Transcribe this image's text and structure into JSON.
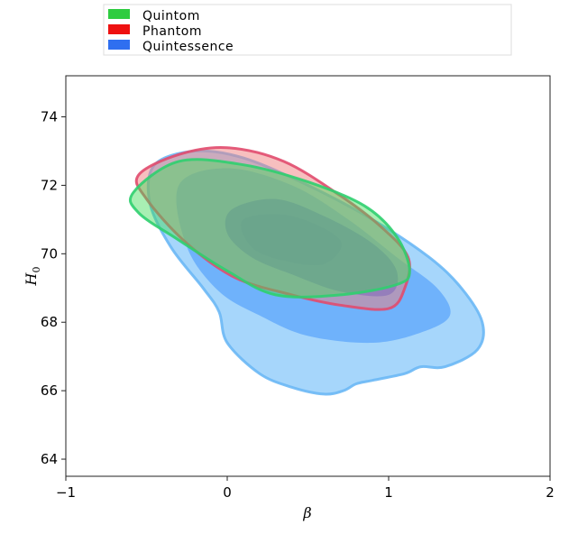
{
  "chart_data": {
    "type": "contour",
    "xlabel": "β",
    "ylabel": "H",
    "ylabel_sub": "0",
    "xlim": [
      -1,
      2
    ],
    "ylim": [
      63.5,
      75.2
    ],
    "xticks": [
      -1,
      0,
      1,
      2
    ],
    "xtick_labels": [
      "−1",
      "0",
      "1",
      "2"
    ],
    "yticks": [
      64,
      66,
      68,
      70,
      72,
      74
    ],
    "ytick_labels": [
      "64",
      "66",
      "68",
      "70",
      "72",
      "74"
    ],
    "grid": false,
    "legend_position": "top-center (outside)",
    "legend": [
      {
        "name": "Quintom",
        "color": "#2ecc40"
      },
      {
        "name": "Phantom",
        "color": "#ee1111"
      },
      {
        "name": "Quintessence",
        "color": "#2f6ff0"
      }
    ],
    "series": [
      {
        "name": "Quintessence",
        "levels": [
          {
            "level": "outer",
            "fill": "#a6d6fb",
            "stroke": "#6cb8f5",
            "opacity": 1,
            "points": [
              [
                -0.45,
                72.6
              ],
              [
                -0.2,
                73.0
              ],
              [
                0.1,
                72.8
              ],
              [
                0.5,
                72.0
              ],
              [
                0.9,
                71.0
              ],
              [
                1.25,
                69.9
              ],
              [
                1.45,
                69.0
              ],
              [
                1.58,
                68.0
              ],
              [
                1.55,
                67.2
              ],
              [
                1.35,
                66.7
              ],
              [
                1.2,
                66.7
              ],
              [
                1.1,
                66.5
              ],
              [
                0.9,
                66.3
              ],
              [
                0.8,
                66.2
              ],
              [
                0.72,
                66.0
              ],
              [
                0.6,
                65.9
              ],
              [
                0.4,
                66.1
              ],
              [
                0.2,
                66.5
              ],
              [
                0.0,
                67.4
              ],
              [
                -0.05,
                68.3
              ],
              [
                -0.15,
                69.0
              ],
              [
                -0.35,
                70.2
              ],
              [
                -0.48,
                71.5
              ]
            ]
          },
          {
            "level": "middle",
            "fill": "#6fb2fb",
            "stroke": "none",
            "opacity": 1,
            "points": [
              [
                -0.3,
                72.0
              ],
              [
                0.0,
                72.5
              ],
              [
                0.4,
                72.0
              ],
              [
                0.75,
                71.0
              ],
              [
                1.05,
                69.9
              ],
              [
                1.3,
                69.0
              ],
              [
                1.38,
                68.2
              ],
              [
                1.2,
                67.7
              ],
              [
                0.9,
                67.4
              ],
              [
                0.5,
                67.6
              ],
              [
                0.2,
                68.2
              ],
              [
                -0.05,
                68.9
              ],
              [
                -0.25,
                70.2
              ]
            ]
          },
          {
            "level": "inner",
            "fill": "#3a7cf6",
            "stroke": "none",
            "opacity": 1,
            "points": [
              [
                0.03,
                71.3
              ],
              [
                0.3,
                71.6
              ],
              [
                0.6,
                71.1
              ],
              [
                0.9,
                70.3
              ],
              [
                1.05,
                69.5
              ],
              [
                1.0,
                68.8
              ],
              [
                0.7,
                68.9
              ],
              [
                0.4,
                69.4
              ],
              [
                0.15,
                69.9
              ],
              [
                0.0,
                70.6
              ]
            ]
          },
          {
            "level": "inner-highlight",
            "fill": "#2e68ee",
            "stroke": "none",
            "opacity": 0.55,
            "points": [
              [
                0.1,
                71.0
              ],
              [
                0.4,
                71.1
              ],
              [
                0.7,
                70.4
              ],
              [
                0.6,
                69.7
              ],
              [
                0.35,
                69.8
              ],
              [
                0.15,
                70.2
              ]
            ]
          }
        ]
      },
      {
        "name": "Phantom",
        "levels": [
          {
            "level": "outer",
            "fill": "#f08080",
            "stroke": "#e14b6e",
            "opacity": 0.5,
            "points": [
              [
                -0.55,
                72.3
              ],
              [
                -0.3,
                72.9
              ],
              [
                0.0,
                73.1
              ],
              [
                0.35,
                72.7
              ],
              [
                0.7,
                71.7
              ],
              [
                0.95,
                70.8
              ],
              [
                1.12,
                69.9
              ],
              [
                1.1,
                69.0
              ],
              [
                1.0,
                68.4
              ],
              [
                0.7,
                68.5
              ],
              [
                0.4,
                68.8
              ],
              [
                0.05,
                69.3
              ],
              [
                -0.25,
                70.3
              ],
              [
                -0.5,
                71.6
              ]
            ]
          }
        ]
      },
      {
        "name": "Quintom",
        "levels": [
          {
            "level": "outer",
            "fill": "#3ddc57",
            "stroke": "#2fcf6f",
            "opacity": 0.45,
            "points": [
              [
                -0.58,
                71.8
              ],
              [
                -0.3,
                72.7
              ],
              [
                0.1,
                72.6
              ],
              [
                0.5,
                72.1
              ],
              [
                0.85,
                71.4
              ],
              [
                1.05,
                70.5
              ],
              [
                1.13,
                69.5
              ],
              [
                1.05,
                69.1
              ],
              [
                0.7,
                68.8
              ],
              [
                0.3,
                68.8
              ],
              [
                0.0,
                69.5
              ],
              [
                -0.3,
                70.4
              ],
              [
                -0.55,
                71.2
              ]
            ]
          }
        ]
      }
    ]
  }
}
